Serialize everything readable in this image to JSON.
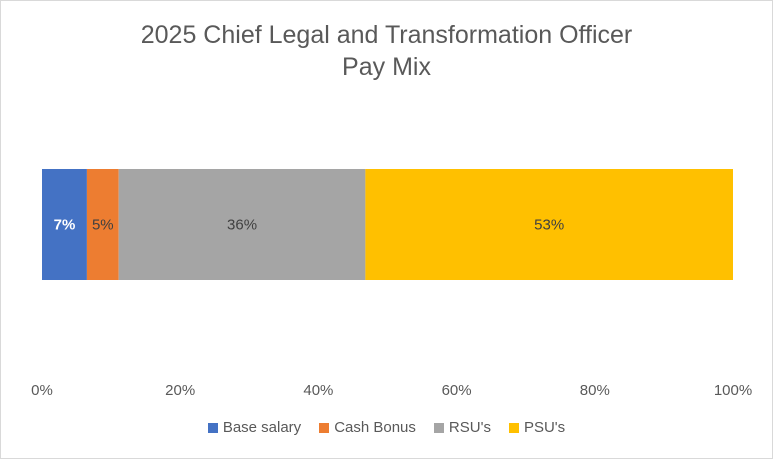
{
  "chart_data": {
    "type": "bar",
    "orientation": "horizontal",
    "stacked": true,
    "title": "2025 Chief Legal and Transformation Officer Pay Mix",
    "title_lines": [
      "2025 Chief Legal and Transformation Officer",
      "Pay Mix"
    ],
    "xlim": [
      0,
      100
    ],
    "x_ticks": [
      "0%",
      "20%",
      "40%",
      "60%",
      "80%",
      "100%"
    ],
    "grid": false,
    "legend_position": "bottom",
    "series": [
      {
        "name": "Base salary",
        "value": 6.5,
        "label": "7%",
        "color": "#4472C4",
        "label_color": "#ffffff",
        "label_bold": true
      },
      {
        "name": "Cash Bonus",
        "value": 4.6,
        "label": "5%",
        "color": "#ED7D31",
        "label_color": "#404040",
        "label_bold": false
      },
      {
        "name": "RSU's",
        "value": 35.7,
        "label": "36%",
        "color": "#A5A5A5",
        "label_color": "#404040",
        "label_bold": false
      },
      {
        "name": "PSU's",
        "value": 53.2,
        "label": "53%",
        "color": "#FFC000",
        "label_color": "#404040",
        "label_bold": false
      }
    ]
  }
}
